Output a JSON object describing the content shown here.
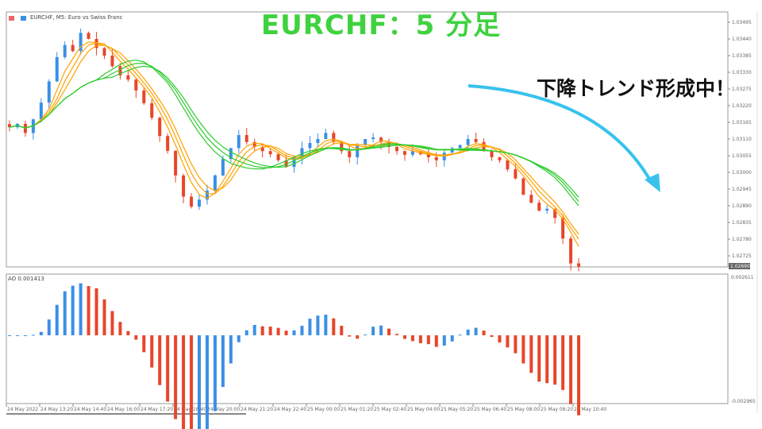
{
  "overlay": {
    "title": "EURCHF：5 分足",
    "annotation": "下降トレンド形成中！",
    "title_color": "#3fd23f",
    "arrow_color": "#38c2ee"
  },
  "chart_header": {
    "symbol": "EURCHF, M5:  Euro vs Swiss Franc"
  },
  "indicator": {
    "label": "AO  0.001413",
    "ylim": [
      -0.002965,
      0.002611
    ],
    "ticks": [
      "0.002611",
      "-0.002965"
    ]
  },
  "chart_data": {
    "type": "candlestick",
    "price_ticks": [
      "1.03495",
      "1.03440",
      "1.03385",
      "1.03330",
      "1.03275",
      "1.03220",
      "1.03165",
      "1.03110",
      "1.03055",
      "1.03000",
      "1.02945",
      "1.02890",
      "1.02835",
      "1.02780",
      "1.02725"
    ],
    "current_price": "1.02690",
    "ylim": [
      1.0268,
      1.0352
    ],
    "time_labels": [
      "24 May 2022",
      "24 May 13:20",
      "24 May 14:40",
      "24 May 16:00",
      "24 May 17:20",
      "24 May 18:40",
      "24 May 20:00",
      "24 May 21:20",
      "24 May 22:40",
      "25 May 00:00",
      "25 May 01:20",
      "25 May 02:40",
      "25 May 04:00",
      "25 May 05:20",
      "25 May 06:40",
      "25 May 08:00",
      "25 May 09:20",
      "25 May 10:40"
    ],
    "closes": [
      1.03149,
      1.0316,
      1.0313,
      1.03175,
      1.0323,
      1.033,
      1.0338,
      1.0342,
      1.034,
      1.0346,
      1.0344,
      1.0341,
      1.03385,
      1.0335,
      1.0332,
      1.03306,
      1.0327,
      1.03228,
      1.0318,
      1.0312,
      1.03071,
      1.0299,
      1.0292,
      1.02887,
      1.0291,
      1.0294,
      1.0299,
      1.03044,
      1.0308,
      1.03123,
      1.031,
      1.03084,
      1.0307,
      1.0306,
      1.0304,
      1.03018,
      1.0305,
      1.0308,
      1.03097,
      1.0311,
      1.0313,
      1.031,
      1.0307,
      1.0305,
      1.0309,
      1.0311,
      1.03115,
      1.031,
      1.03084,
      1.0307,
      1.03058,
      1.0307,
      1.0306,
      1.0305,
      1.0304,
      1.03065,
      1.0308,
      1.0309,
      1.0311,
      1.031,
      1.0307,
      1.0305,
      1.0304,
      1.0301,
      1.0298,
      1.02926,
      1.029,
      1.02874,
      1.0288,
      1.0285,
      1.02782,
      1.027,
      1.0269
    ],
    "up_color": "#3b8fe6",
    "down_color": "#e8452a",
    "ma_fast_color": "#ffa200",
    "ma_slow_color": "#2ecc2e"
  }
}
